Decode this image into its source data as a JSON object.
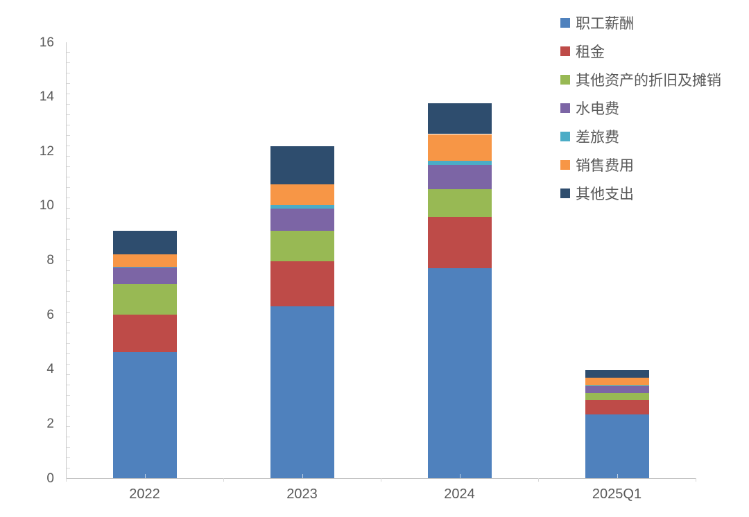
{
  "chart_data": {
    "type": "bar",
    "stacked": true,
    "title": "",
    "xlabel": "",
    "ylabel": "",
    "categories": [
      "2022",
      "2023",
      "2024",
      "2025Q1"
    ],
    "series": [
      {
        "name": "职工薪酬",
        "color": "#4F81BD",
        "values": [
          4.62,
          6.3,
          7.7,
          2.35
        ]
      },
      {
        "name": "租金",
        "color": "#BE4B48",
        "values": [
          1.38,
          1.65,
          1.9,
          0.52
        ]
      },
      {
        "name": "其他资产的折旧及摊销",
        "color": "#98B954",
        "values": [
          1.12,
          1.13,
          1.0,
          0.27
        ]
      },
      {
        "name": "水电费",
        "color": "#7C65A5",
        "values": [
          0.62,
          0.81,
          0.9,
          0.25
        ]
      },
      {
        "name": "差旅费",
        "color": "#4BACC6",
        "values": [
          0.03,
          0.14,
          0.16,
          0.02
        ]
      },
      {
        "name": "销售费用",
        "color": "#F79646",
        "values": [
          0.45,
          0.76,
          0.97,
          0.29
        ]
      },
      {
        "name": "其他支出",
        "color": "#2E4D6E",
        "values": [
          0.87,
          1.39,
          1.12,
          0.26
        ]
      }
    ],
    "ylim": [
      0,
      16
    ],
    "y_ticks": [
      0,
      2,
      4,
      6,
      8,
      10,
      12,
      14,
      16
    ],
    "grid": false,
    "legend_position": "top-right"
  },
  "colors": {
    "background": "#FFFFFF",
    "axis_line": "#C9C9C9",
    "minor_tick": "#D9D9D9",
    "tick_text": "#595959",
    "legend_text": "#595959"
  }
}
